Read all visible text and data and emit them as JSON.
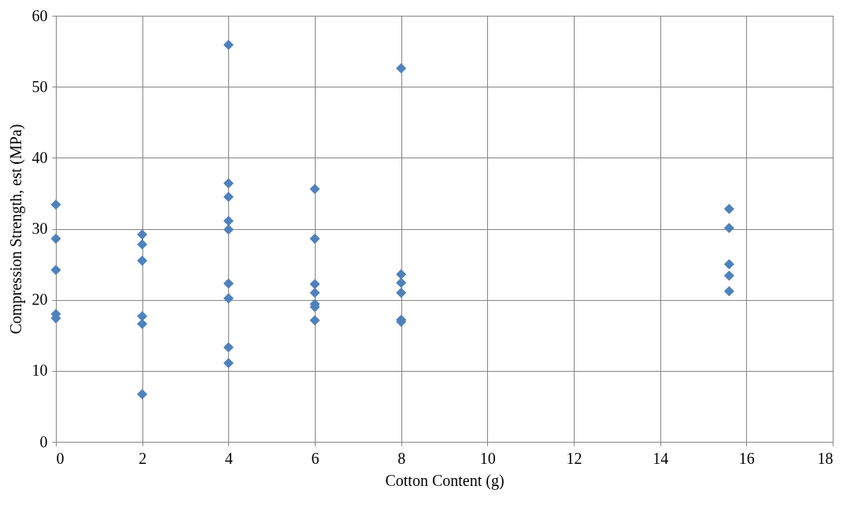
{
  "chart_data": {
    "type": "scatter",
    "xlabel": "Cotton Content (g)",
    "ylabel": "Compression Strength, est (MPa)",
    "xlim": [
      0,
      18
    ],
    "xticks": [
      0,
      2,
      4,
      6,
      8,
      10,
      12,
      14,
      16,
      18
    ],
    "ylim": [
      0,
      60
    ],
    "yticks": [
      0,
      10,
      20,
      30,
      40,
      50,
      60
    ],
    "grid": true,
    "marker": "diamond",
    "legend": false,
    "series": [
      {
        "color": "#4f81bd",
        "x": [
          0,
          0,
          0,
          0,
          0,
          2,
          2,
          2,
          2,
          2,
          2,
          4,
          4,
          4,
          4,
          4,
          4,
          4,
          4,
          4,
          6,
          6,
          6,
          6,
          6,
          6,
          6,
          8,
          8,
          8,
          8,
          8,
          8,
          15.6,
          15.6,
          15.6,
          15.6,
          15.6
        ],
        "values": [
          33.4,
          28.6,
          24.2,
          18.0,
          17.4,
          29.2,
          27.8,
          25.5,
          17.7,
          16.6,
          6.7,
          55.9,
          36.4,
          34.5,
          31.1,
          29.9,
          22.3,
          20.2,
          13.3,
          11.1,
          35.6,
          28.6,
          22.2,
          21.0,
          19.4,
          19.0,
          17.1,
          52.6,
          23.6,
          22.4,
          21.0,
          17.2,
          16.9,
          32.8,
          30.1,
          25.0,
          23.4,
          21.2
        ]
      }
    ]
  }
}
